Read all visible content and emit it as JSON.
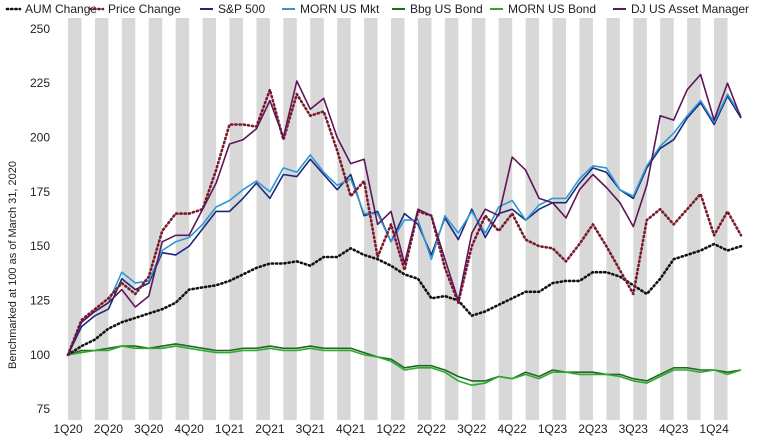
{
  "chart_data": {
    "type": "line",
    "title": "",
    "xlabel": "",
    "ylabel": "Benchmarked at 100 as of March 31, 2020",
    "ylim": [
      70,
      255
    ],
    "yticks": [
      75,
      100,
      125,
      150,
      175,
      200,
      225,
      250
    ],
    "grid": "vertical alternating gray bands per month",
    "legend_position": "top",
    "x_tick_labels": [
      "1Q20",
      "2Q20",
      "3Q20",
      "4Q20",
      "1Q21",
      "2Q21",
      "3Q21",
      "4Q21",
      "1Q22",
      "2Q22",
      "3Q22",
      "4Q22",
      "1Q23",
      "2Q23",
      "3Q23",
      "4Q23",
      "1Q24"
    ],
    "x": [
      "Mar-20",
      "Apr-20",
      "May-20",
      "Jun-20",
      "Jul-20",
      "Aug-20",
      "Sep-20",
      "Oct-20",
      "Nov-20",
      "Dec-20",
      "Jan-21",
      "Feb-21",
      "Mar-21",
      "Apr-21",
      "May-21",
      "Jun-21",
      "Jul-21",
      "Aug-21",
      "Sep-21",
      "Oct-21",
      "Nov-21",
      "Dec-21",
      "Jan-22",
      "Feb-22",
      "Mar-22",
      "Apr-22",
      "May-22",
      "Jun-22",
      "Jul-22",
      "Aug-22",
      "Sep-22",
      "Oct-22",
      "Nov-22",
      "Dec-22",
      "Jan-23",
      "Feb-23",
      "Mar-23",
      "Apr-23",
      "May-23",
      "Jun-23",
      "Jul-23",
      "Aug-23",
      "Sep-23",
      "Oct-23",
      "Nov-23",
      "Dec-23",
      "Jan-24",
      "Feb-24",
      "Mar-24",
      "Apr-24",
      "May-24"
    ],
    "series": [
      {
        "name": "AUM Change",
        "color": "#111111",
        "style": "dotted",
        "values": [
          100,
          104,
          107,
          112,
          115,
          117,
          119,
          121,
          124,
          130,
          131,
          132,
          134,
          137,
          140,
          142,
          142,
          143,
          141,
          145,
          145,
          149,
          146,
          144,
          141,
          137,
          135,
          126,
          127,
          125,
          118,
          120,
          123,
          126,
          129,
          129,
          133,
          134,
          134,
          138,
          138,
          136,
          132,
          128,
          135,
          144,
          146,
          148,
          151,
          148,
          150
        ]
      },
      {
        "name": "Price Change",
        "color": "#7a1a2a",
        "style": "dotted",
        "values": [
          100,
          116,
          121,
          126,
          133,
          128,
          136,
          157,
          165,
          165,
          167,
          185,
          206,
          206,
          205,
          222,
          199,
          220,
          210,
          212,
          194,
          173,
          180,
          145,
          160,
          139,
          166,
          164,
          140,
          124,
          150,
          164,
          157,
          165,
          153,
          150,
          149,
          143,
          151,
          160,
          150,
          139,
          128,
          162,
          167,
          160,
          167,
          174,
          155,
          166,
          155
        ]
      },
      {
        "name": "S&P 500",
        "color": "#1a2a78",
        "style": "solid",
        "values": [
          100,
          113,
          118,
          121,
          135,
          130,
          133,
          147,
          146,
          150,
          158,
          166,
          166,
          172,
          179,
          172,
          183,
          182,
          190,
          183,
          176,
          183,
          164,
          166,
          152,
          165,
          160,
          146,
          163,
          153,
          167,
          154,
          165,
          167,
          162,
          167,
          170,
          170,
          179,
          186,
          184,
          176,
          172,
          186,
          195,
          199,
          209,
          216,
          206,
          219,
          209
        ]
      },
      {
        "name": "MORN US Mkt",
        "color": "#2f97d6",
        "style": "solid",
        "values": [
          100,
          115,
          120,
          124,
          138,
          133,
          134,
          148,
          152,
          154,
          160,
          168,
          171,
          176,
          180,
          175,
          186,
          184,
          192,
          184,
          178,
          181,
          165,
          165,
          152,
          162,
          162,
          144,
          164,
          156,
          166,
          156,
          168,
          171,
          162,
          169,
          172,
          172,
          181,
          187,
          186,
          176,
          173,
          187,
          196,
          202,
          210,
          217,
          207,
          220,
          210
        ]
      },
      {
        "name": "Bbg US Bond",
        "color": "#1f6a1f",
        "style": "solid",
        "values": [
          100,
          102,
          102,
          103,
          104,
          104,
          103,
          104,
          105,
          104,
          103,
          102,
          102,
          103,
          103,
          104,
          103,
          103,
          104,
          103,
          103,
          103,
          101,
          99,
          98,
          94,
          95,
          95,
          93,
          90,
          88,
          88,
          90,
          89,
          92,
          90,
          93,
          92,
          92,
          92,
          91,
          91,
          89,
          88,
          91,
          94,
          94,
          93,
          93,
          92,
          93
        ]
      },
      {
        "name": "MORN US Bond",
        "color": "#2fa832",
        "style": "solid",
        "values": [
          100,
          101,
          102,
          102,
          104,
          103,
          103,
          103,
          104,
          103,
          102,
          101,
          101,
          102,
          102,
          103,
          102,
          102,
          103,
          102,
          102,
          102,
          100,
          99,
          97,
          93,
          94,
          94,
          92,
          88,
          86,
          87,
          90,
          89,
          91,
          89,
          92,
          92,
          91,
          91,
          91,
          90,
          88,
          87,
          90,
          93,
          93,
          92,
          93,
          91,
          93
        ]
      },
      {
        "name": "DJ US Asset Manager",
        "color": "#5e1658",
        "style": "solid",
        "values": [
          100,
          115,
          120,
          124,
          130,
          122,
          127,
          152,
          155,
          155,
          167,
          179,
          197,
          199,
          204,
          217,
          200,
          226,
          213,
          218,
          200,
          188,
          190,
          160,
          166,
          142,
          167,
          164,
          144,
          125,
          156,
          167,
          164,
          191,
          185,
          172,
          170,
          163,
          176,
          183,
          177,
          170,
          159,
          178,
          210,
          208,
          222,
          229,
          208,
          225,
          209
        ]
      }
    ]
  }
}
